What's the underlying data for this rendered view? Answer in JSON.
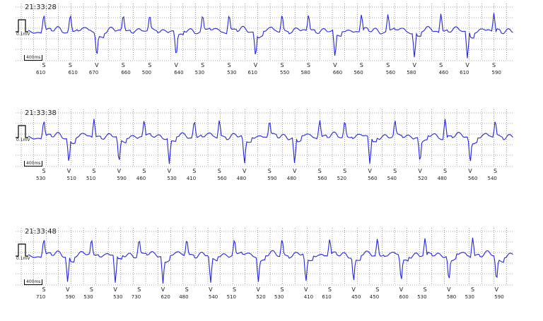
{
  "strips": [
    {
      "time": "21:33:28",
      "gain": "0.1mV",
      "timebar": "400ms",
      "beats": [
        {
          "label": "S",
          "interval": "610"
        },
        {
          "label": "S",
          "interval": "610"
        },
        {
          "label": "V",
          "interval": "670"
        },
        {
          "label": "S",
          "interval": "660"
        },
        {
          "label": "S",
          "interval": "500"
        },
        {
          "label": "V",
          "interval": "640"
        },
        {
          "label": "S",
          "interval": "530"
        },
        {
          "label": "S",
          "interval": "530"
        },
        {
          "label": "V",
          "interval": "610"
        },
        {
          "label": "S",
          "interval": "550"
        },
        {
          "label": "S",
          "interval": "580"
        },
        {
          "label": "V",
          "interval": "660"
        },
        {
          "label": "S",
          "interval": "560"
        },
        {
          "label": "S",
          "interval": "560"
        },
        {
          "label": "V",
          "interval": "580"
        },
        {
          "label": "S",
          "interval": "460"
        },
        {
          "label": "V",
          "interval": "610"
        },
        {
          "label": "S",
          "interval": "590"
        }
      ]
    },
    {
      "time": "21:33:38",
      "gain": "0.1mV",
      "timebar": "400ms",
      "beats": [
        {
          "label": "S",
          "interval": "530"
        },
        {
          "label": "V",
          "interval": "510"
        },
        {
          "label": "S",
          "interval": "510"
        },
        {
          "label": "V",
          "interval": "590"
        },
        {
          "label": "S",
          "interval": "460"
        },
        {
          "label": "V",
          "interval": "530"
        },
        {
          "label": "S",
          "interval": "410"
        },
        {
          "label": "S",
          "interval": "560"
        },
        {
          "label": "V",
          "interval": "480"
        },
        {
          "label": "S",
          "interval": "590"
        },
        {
          "label": "V",
          "interval": "480"
        },
        {
          "label": "S",
          "interval": "560"
        },
        {
          "label": "S",
          "interval": "520"
        },
        {
          "label": "V",
          "interval": "560"
        },
        {
          "label": "S",
          "interval": "540"
        },
        {
          "label": "V",
          "interval": "520"
        },
        {
          "label": "S",
          "interval": "480"
        },
        {
          "label": "V",
          "interval": "560"
        },
        {
          "label": "S",
          "interval": "540"
        }
      ]
    },
    {
      "time": "21:33:48",
      "gain": "0.1mV",
      "timebar": "400ms",
      "beats": [
        {
          "label": "S",
          "interval": "710"
        },
        {
          "label": "V",
          "interval": "590"
        },
        {
          "label": "S",
          "interval": "530"
        },
        {
          "label": "V",
          "interval": "530"
        },
        {
          "label": "S",
          "interval": "730"
        },
        {
          "label": "V",
          "interval": "620"
        },
        {
          "label": "S",
          "interval": "480"
        },
        {
          "label": "V",
          "interval": "540"
        },
        {
          "label": "S",
          "interval": "510"
        },
        {
          "label": "V",
          "interval": "520"
        },
        {
          "label": "S",
          "interval": "530"
        },
        {
          "label": "V",
          "interval": "410"
        },
        {
          "label": "S",
          "interval": "610"
        },
        {
          "label": "V",
          "interval": "450"
        },
        {
          "label": "S",
          "interval": "450"
        },
        {
          "label": "V",
          "interval": "600"
        },
        {
          "label": "S",
          "interval": "530"
        },
        {
          "label": "V",
          "interval": "580"
        },
        {
          "label": "S",
          "interval": "530"
        },
        {
          "label": "V",
          "interval": "590"
        }
      ]
    }
  ]
}
